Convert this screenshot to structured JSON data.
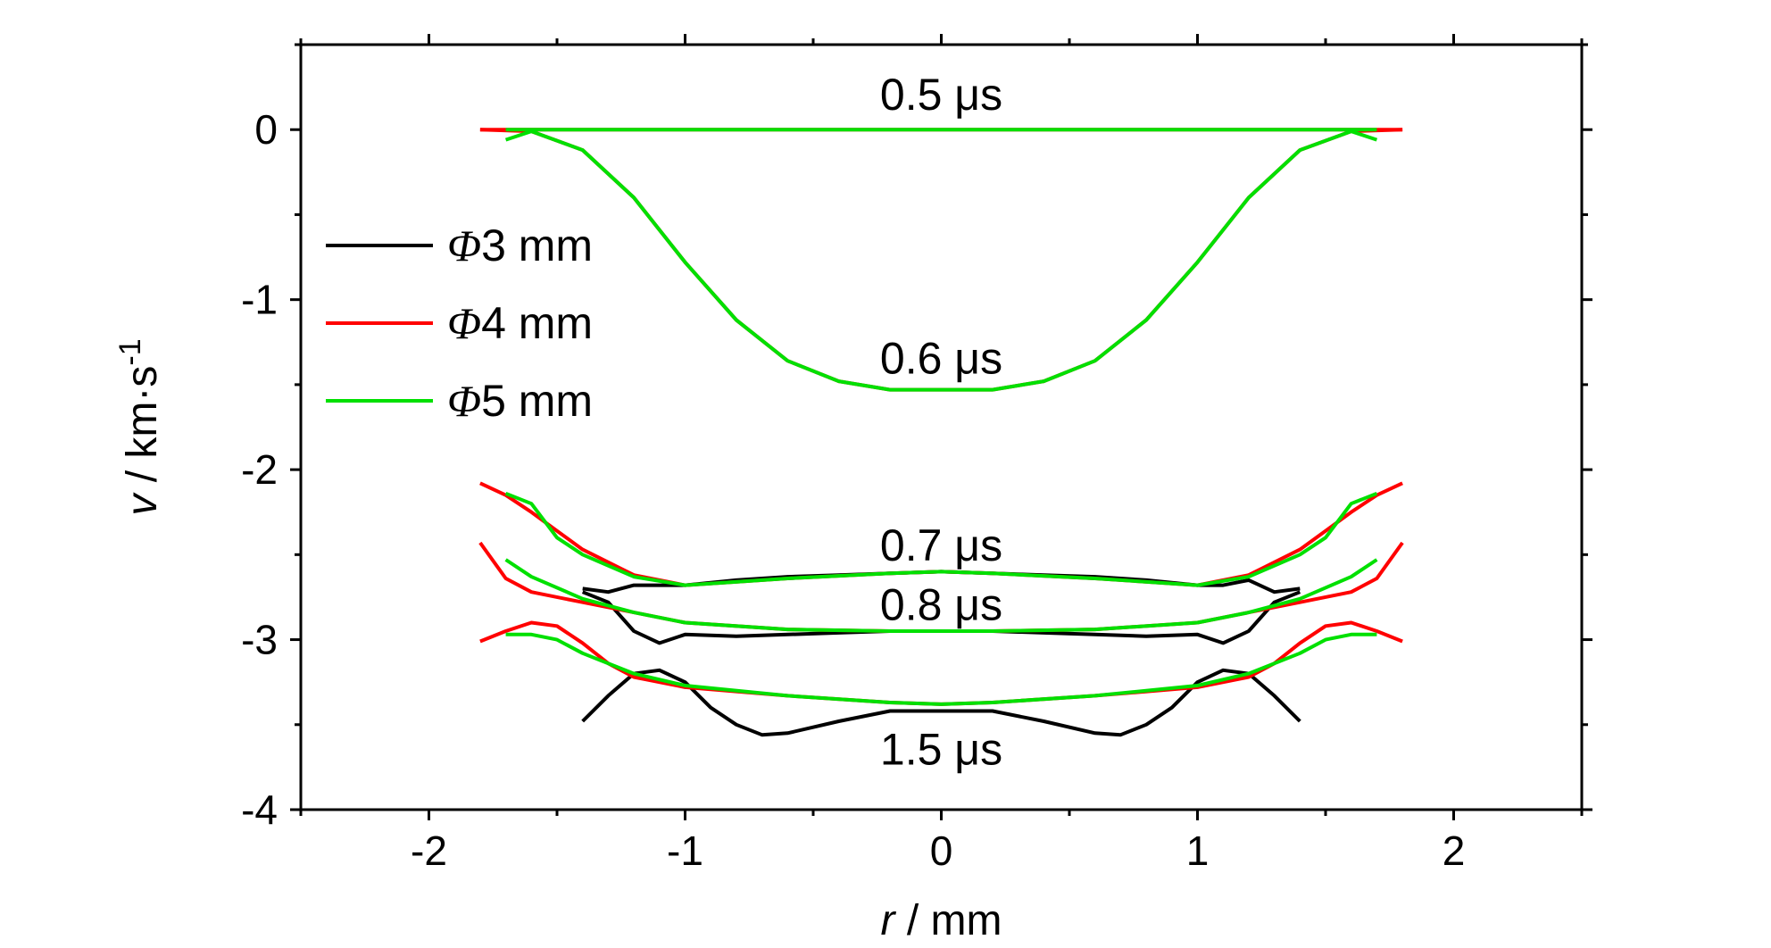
{
  "chart_data": {
    "type": "line",
    "xlabel": {
      "var": "r",
      "unit": " / mm"
    },
    "ylabel": {
      "var": "v",
      "unit": " / km·s",
      "exp": "-1"
    },
    "xlim": [
      -2.5,
      2.5
    ],
    "ylim": [
      -4,
      0.5
    ],
    "xticks": [
      -2,
      -1,
      0,
      1,
      2
    ],
    "yticks": [
      0,
      -1,
      -2,
      -3,
      -4
    ],
    "grid": false,
    "legend_position": "center-left",
    "legend": [
      {
        "symbol": "Φ",
        "text": "3 mm",
        "color": "#000000"
      },
      {
        "symbol": "Φ",
        "text": "4 mm",
        "color": "#ff0000"
      },
      {
        "symbol": "Φ",
        "text": "5 mm",
        "color": "#00e000"
      }
    ],
    "annotations": [
      {
        "text": "0.5 μs",
        "x": 0,
        "y": 0.2
      },
      {
        "text": "0.6 μs",
        "x": 0,
        "y": -1.35
      },
      {
        "text": "0.7 μs",
        "x": 0,
        "y": -2.45
      },
      {
        "text": "0.8 μs",
        "x": 0,
        "y": -2.8
      },
      {
        "text": "1.5 μs",
        "x": 0,
        "y": -3.65
      }
    ],
    "series": [
      {
        "group": "Φ 3 mm",
        "time": "0.7 μs",
        "color": "#000000",
        "x": [
          -1.4,
          -1.3,
          -1.2,
          -1.1,
          -1.0,
          -0.8,
          -0.6,
          -0.4,
          -0.2,
          0,
          0.2,
          0.4,
          0.6,
          0.8,
          1.0,
          1.1,
          1.2,
          1.3,
          1.4
        ],
        "y": [
          -2.7,
          -2.72,
          -2.68,
          -2.68,
          -2.68,
          -2.65,
          -2.63,
          -2.62,
          -2.61,
          -2.6,
          -2.61,
          -2.62,
          -2.63,
          -2.65,
          -2.68,
          -2.68,
          -2.65,
          -2.72,
          -2.7
        ]
      },
      {
        "group": "Φ 3 mm",
        "time": "0.8 μs",
        "color": "#000000",
        "x": [
          -1.4,
          -1.3,
          -1.2,
          -1.1,
          -1.0,
          -0.8,
          -0.6,
          -0.4,
          -0.2,
          0,
          0.2,
          0.4,
          0.6,
          0.8,
          1.0,
          1.1,
          1.2,
          1.3,
          1.4
        ],
        "y": [
          -2.72,
          -2.78,
          -2.95,
          -3.02,
          -2.97,
          -2.98,
          -2.97,
          -2.96,
          -2.95,
          -2.95,
          -2.95,
          -2.96,
          -2.97,
          -2.98,
          -2.97,
          -3.02,
          -2.95,
          -2.78,
          -2.72
        ]
      },
      {
        "group": "Φ 3 mm",
        "time": "1.5 μs",
        "color": "#000000",
        "x": [
          -1.4,
          -1.3,
          -1.2,
          -1.1,
          -1.0,
          -0.9,
          -0.8,
          -0.7,
          -0.6,
          -0.4,
          -0.2,
          0,
          0.2,
          0.4,
          0.6,
          0.7,
          0.8,
          0.9,
          1.0,
          1.1,
          1.2,
          1.3,
          1.4
        ],
        "y": [
          -3.48,
          -3.33,
          -3.2,
          -3.18,
          -3.25,
          -3.4,
          -3.5,
          -3.56,
          -3.55,
          -3.48,
          -3.42,
          -3.42,
          -3.42,
          -3.48,
          -3.55,
          -3.56,
          -3.5,
          -3.4,
          -3.25,
          -3.18,
          -3.2,
          -3.33,
          -3.48
        ]
      },
      {
        "group": "Φ 4 mm",
        "time": "0.5 μs",
        "color": "#ff0000",
        "x": [
          -1.8,
          -1.7,
          0,
          1.7,
          1.8
        ],
        "y": [
          0,
          0,
          0,
          0,
          0
        ]
      },
      {
        "group": "Φ 4 mm",
        "time": "0.6 μs",
        "color": "#ff0000",
        "x": [
          -1.8,
          -1.6,
          -1.4,
          -1.2,
          -1.0,
          -0.8,
          -0.6,
          -0.4,
          -0.2,
          0,
          0.2,
          0.4,
          0.6,
          0.8,
          1.0,
          1.2,
          1.4,
          1.6,
          1.8
        ],
        "y": [
          0,
          -0.01,
          -0.12,
          -0.4,
          -0.78,
          -1.12,
          -1.36,
          -1.48,
          -1.53,
          -1.53,
          -1.53,
          -1.48,
          -1.36,
          -1.12,
          -0.78,
          -0.4,
          -0.12,
          -0.01,
          0
        ]
      },
      {
        "group": "Φ 4 mm",
        "time": "0.7 μs",
        "color": "#ff0000",
        "x": [
          -1.8,
          -1.7,
          -1.6,
          -1.5,
          -1.4,
          -1.2,
          -1.0,
          -0.6,
          -0.2,
          0,
          0.2,
          0.6,
          1.0,
          1.2,
          1.4,
          1.5,
          1.6,
          1.7,
          1.8
        ],
        "y": [
          -2.08,
          -2.15,
          -2.25,
          -2.36,
          -2.47,
          -2.62,
          -2.68,
          -2.64,
          -2.61,
          -2.6,
          -2.61,
          -2.64,
          -2.68,
          -2.62,
          -2.47,
          -2.36,
          -2.25,
          -2.15,
          -2.08
        ]
      },
      {
        "group": "Φ 4 mm",
        "time": "0.8 μs",
        "color": "#ff0000",
        "x": [
          -1.8,
          -1.7,
          -1.6,
          -1.4,
          -1.2,
          -1.0,
          -0.6,
          -0.2,
          0,
          0.2,
          0.6,
          1.0,
          1.2,
          1.4,
          1.6,
          1.7,
          1.8
        ],
        "y": [
          -2.43,
          -2.64,
          -2.72,
          -2.78,
          -2.84,
          -2.9,
          -2.94,
          -2.95,
          -2.95,
          -2.95,
          -2.94,
          -2.9,
          -2.84,
          -2.78,
          -2.72,
          -2.64,
          -2.43
        ]
      },
      {
        "group": "Φ 4 mm",
        "time": "1.5 μs",
        "color": "#ff0000",
        "x": [
          -1.8,
          -1.7,
          -1.6,
          -1.5,
          -1.4,
          -1.3,
          -1.2,
          -1.0,
          -0.6,
          -0.2,
          0,
          0.2,
          0.6,
          1.0,
          1.2,
          1.3,
          1.4,
          1.5,
          1.6,
          1.7,
          1.8
        ],
        "y": [
          -3.01,
          -2.95,
          -2.9,
          -2.92,
          -3.02,
          -3.14,
          -3.22,
          -3.28,
          -3.33,
          -3.37,
          -3.38,
          -3.37,
          -3.33,
          -3.28,
          -3.22,
          -3.14,
          -3.02,
          -2.92,
          -2.9,
          -2.95,
          -3.01
        ]
      },
      {
        "group": "Φ 5 mm",
        "time": "0.5 μs",
        "color": "#00e000",
        "x": [
          -1.7,
          0,
          1.7
        ],
        "y": [
          0,
          0,
          0
        ]
      },
      {
        "group": "Φ 5 mm",
        "time": "0.6 μs",
        "color": "#00e000",
        "x": [
          -1.7,
          -1.6,
          -1.4,
          -1.2,
          -1.0,
          -0.8,
          -0.6,
          -0.4,
          -0.2,
          0,
          0.2,
          0.4,
          0.6,
          0.8,
          1.0,
          1.2,
          1.4,
          1.6,
          1.7
        ],
        "y": [
          -0.06,
          -0.01,
          -0.12,
          -0.4,
          -0.78,
          -1.12,
          -1.36,
          -1.48,
          -1.53,
          -1.53,
          -1.53,
          -1.48,
          -1.36,
          -1.12,
          -0.78,
          -0.4,
          -0.12,
          -0.01,
          -0.06
        ]
      },
      {
        "group": "Φ 5 mm",
        "time": "0.7 μs",
        "color": "#00e000",
        "x": [
          -1.7,
          -1.6,
          -1.5,
          -1.4,
          -1.2,
          -1.0,
          -0.6,
          -0.2,
          0,
          0.2,
          0.6,
          1.0,
          1.2,
          1.4,
          1.5,
          1.6,
          1.7
        ],
        "y": [
          -2.14,
          -2.2,
          -2.4,
          -2.5,
          -2.63,
          -2.68,
          -2.64,
          -2.61,
          -2.6,
          -2.61,
          -2.64,
          -2.68,
          -2.63,
          -2.5,
          -2.4,
          -2.2,
          -2.14
        ]
      },
      {
        "group": "Φ 5 mm",
        "time": "0.8 μs",
        "color": "#00e000",
        "x": [
          -1.7,
          -1.6,
          -1.4,
          -1.2,
          -1.0,
          -0.6,
          -0.2,
          0,
          0.2,
          0.6,
          1.0,
          1.2,
          1.4,
          1.6,
          1.7
        ],
        "y": [
          -2.53,
          -2.63,
          -2.76,
          -2.84,
          -2.9,
          -2.94,
          -2.95,
          -2.95,
          -2.95,
          -2.94,
          -2.9,
          -2.84,
          -2.76,
          -2.63,
          -2.53
        ]
      },
      {
        "group": "Φ 5 mm",
        "time": "1.5 μs",
        "color": "#00e000",
        "x": [
          -1.7,
          -1.6,
          -1.5,
          -1.4,
          -1.2,
          -1.0,
          -0.6,
          -0.2,
          0,
          0.2,
          0.6,
          1.0,
          1.2,
          1.4,
          1.5,
          1.6,
          1.7
        ],
        "y": [
          -2.97,
          -2.97,
          -3.0,
          -3.08,
          -3.2,
          -3.27,
          -3.33,
          -3.37,
          -3.38,
          -3.37,
          -3.33,
          -3.27,
          -3.2,
          -3.08,
          -3.0,
          -2.97,
          -2.97
        ]
      }
    ]
  }
}
